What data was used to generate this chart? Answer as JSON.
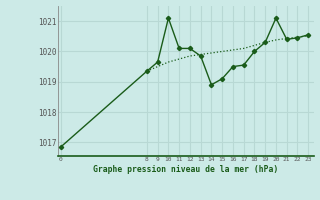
{
  "title": "Graphe pression niveau de la mer (hPa)",
  "bg_color": "#cceae7",
  "line_color": "#1a5c1a",
  "marker_color": "#1a5c1a",
  "grid_color": "#b8d8d4",
  "axis_label_color": "#1a5c1a",
  "tick_color": "#555555",
  "ylim": [
    1016.55,
    1021.5
  ],
  "yticks": [
    1017,
    1018,
    1019,
    1020,
    1021
  ],
  "series1_x": [
    0,
    8,
    9,
    10,
    11,
    12,
    13,
    14,
    15,
    16,
    17,
    18,
    19,
    20,
    21,
    22,
    23
  ],
  "series1_y": [
    1016.85,
    1019.35,
    1019.65,
    1021.1,
    1020.1,
    1020.1,
    1019.85,
    1018.9,
    1019.1,
    1019.5,
    1019.55,
    1020.0,
    1020.3,
    1021.1,
    1020.4,
    1020.45,
    1020.55
  ],
  "series2_x": [
    8,
    9,
    10,
    11,
    12,
    13,
    14,
    15,
    16,
    17,
    18,
    19,
    20,
    21,
    22,
    23
  ],
  "series2_y": [
    1019.35,
    1019.5,
    1019.65,
    1019.75,
    1019.85,
    1019.9,
    1019.95,
    1020.0,
    1020.05,
    1020.1,
    1020.2,
    1020.3,
    1020.38,
    1020.43,
    1020.47,
    1020.52
  ],
  "xtick_labels": [
    "0",
    "",
    "8",
    "9",
    "10",
    "11",
    "12",
    "13",
    "14",
    "15",
    "16",
    "17",
    "18",
    "19",
    "20",
    "21",
    "22",
    "23"
  ],
  "xlim": [
    -0.3,
    23.5
  ],
  "spine_color": "#888888",
  "bottom_spine_color": "#1a5c1a"
}
